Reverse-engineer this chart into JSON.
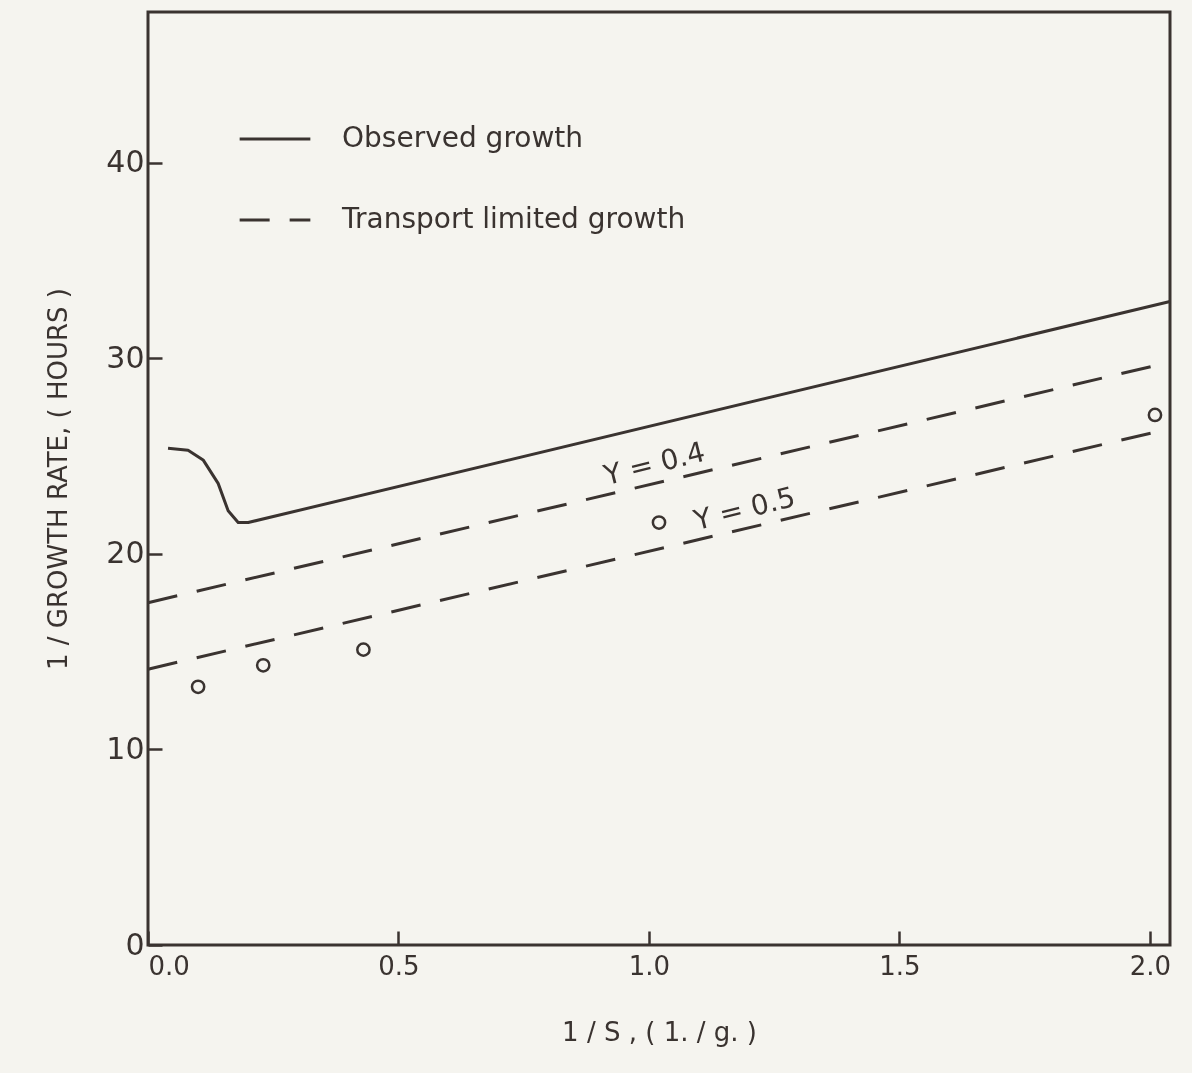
{
  "chart_data": {
    "type": "line",
    "xlabel": "1 / S ,      ( 1. / g. )",
    "ylabel": "1 / GROWTH RATE,     ( HOURS )",
    "xlim": [
      0,
      2.04
    ],
    "ylim": [
      0,
      47.7
    ],
    "xticks": [
      {
        "value": 0,
        "label": "0.0"
      },
      {
        "value": 0.5,
        "label": "0.5"
      },
      {
        "value": 1,
        "label": "1.0"
      },
      {
        "value": 1.5,
        "label": "1.5"
      },
      {
        "value": 2,
        "label": "2.0"
      }
    ],
    "yticks": [
      0,
      10,
      20,
      30,
      40
    ],
    "grid": false,
    "legend": "top left",
    "series": [
      {
        "name": "Observed growth",
        "color": "#3a3330",
        "line_style": "solid",
        "x": [
          0.04,
          0.08,
          0.11,
          0.14,
          0.16,
          0.18,
          0.2,
          2.04
        ],
        "values": [
          25.4,
          25.3,
          24.8,
          23.6,
          22.2,
          21.6,
          21.6,
          32.9
        ]
      },
      {
        "name": "Transport limited growth",
        "color": "#3a3330",
        "line_style": "dashed",
        "x": [
          0,
          2.04
        ],
        "values": [
          17.5,
          29.8
        ]
      },
      {
        "color": "#3a3330",
        "line_style": "dashed",
        "x": [
          0,
          2.04
        ],
        "values": [
          14.1,
          26.4
        ]
      },
      {
        "type": "scatter",
        "marker": "circle",
        "color": "#3a3330",
        "x": [
          0.1,
          0.23,
          0.43,
          1.02,
          2.01
        ],
        "values": [
          13.2,
          14.3,
          15.1,
          21.6,
          27.1
        ]
      }
    ],
    "annotations": [
      {
        "text": "Y = 0.4",
        "x": 1.02,
        "y": 23.65
      },
      {
        "text": "Y = 0.5",
        "x": 1.2,
        "y": 21.34
      }
    ]
  }
}
